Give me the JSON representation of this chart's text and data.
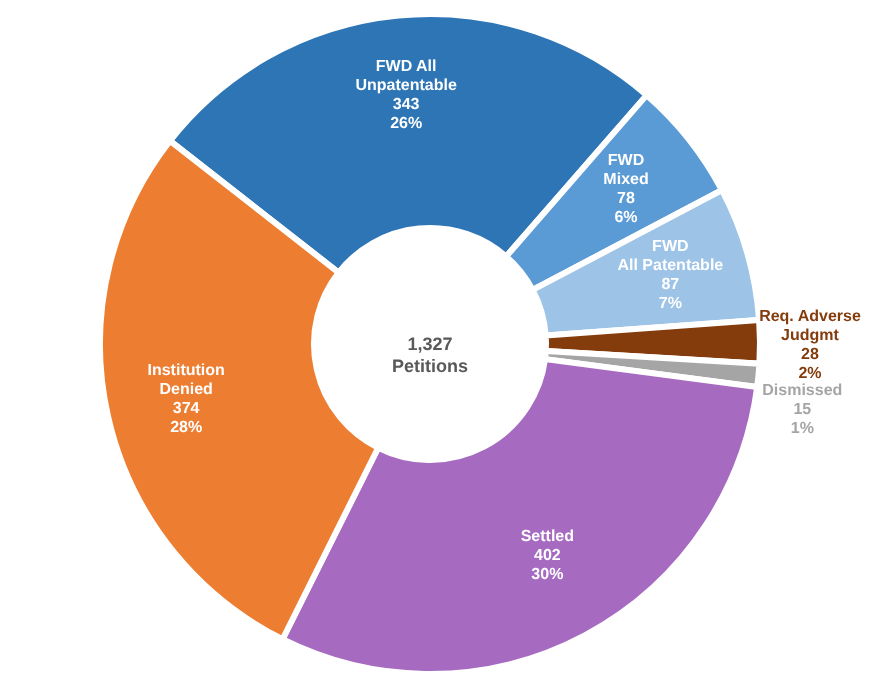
{
  "chart_data": {
    "type": "donut",
    "categories": [
      "FWD All\nUnpatentable",
      "FWD\nMixed",
      "FWD\nAll Patentable",
      "Req. Adverse\nJudgmt",
      "Dismissed",
      "Settled",
      "Institution\nDenied"
    ],
    "values": [
      343,
      78,
      87,
      28,
      15,
      402,
      374
    ],
    "value_labels": [
      "343\n26%",
      "78\n6%",
      "87\n7%",
      "28\n2%",
      "15\n1%",
      "402\n30%",
      "374\n28%"
    ],
    "colors": [
      "#2e75b6",
      "#5b9bd5",
      "#9dc3e6",
      "#843c0c",
      "#a5a5a5",
      "#a66bc0",
      "#ed7d31"
    ],
    "annotations": [
      "1,327\nPetitions"
    ]
  }
}
